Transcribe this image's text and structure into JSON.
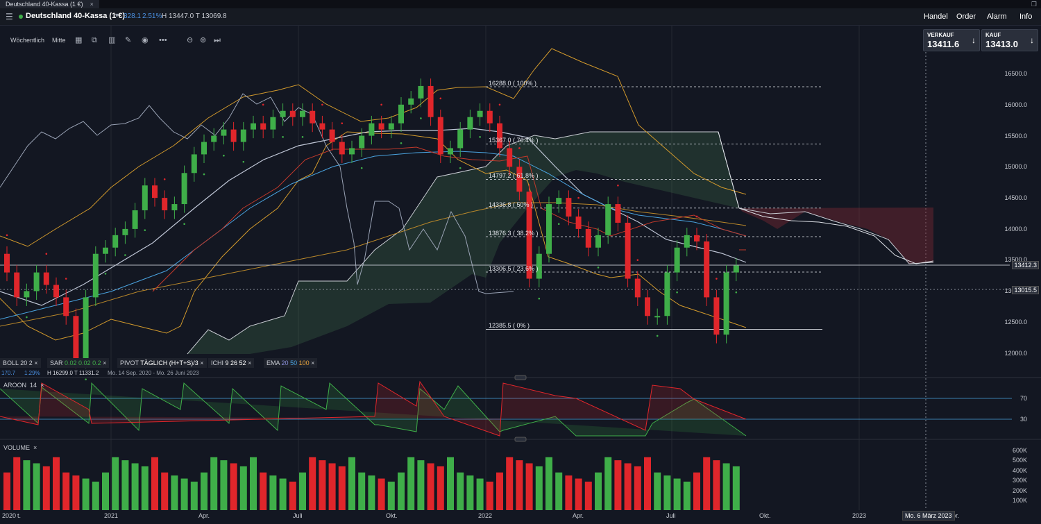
{
  "window": {
    "tab_title": "Deutschland 40-Kassa (1 €)",
    "tab_close": "×"
  },
  "header": {
    "instrument": "Deutschland 40-Kassa (1 €)",
    "change": "328.1",
    "change_pct": "2.51%",
    "high_low": "H 13447.0 T 13069.8",
    "menu": [
      "Handel",
      "Order",
      "Alarm",
      "Info"
    ]
  },
  "toolbar": {
    "interval": "Wöchentlich",
    "price_mode": "Mitte",
    "icons": [
      "chart-type-icon",
      "copy-icon",
      "indicators-icon",
      "draw-icon",
      "eye-icon",
      "more-icon",
      "zoom-out-icon",
      "zoom-in-icon",
      "scroll-right-icon"
    ]
  },
  "quotes": {
    "sell_label": "VERKAUF",
    "sell_value": "13411.6",
    "buy_label": "KAUF",
    "buy_value": "13413.0",
    "arrow": "↓"
  },
  "price_axis": [
    "16500.0",
    "16000.0",
    "15500.0",
    "15000.0",
    "14500.0",
    "14000.0",
    "13500.0",
    "13000.0",
    "12500.0",
    "12000.0"
  ],
  "price_tags": {
    "last": "13412.3",
    "ref": "13015.5"
  },
  "fib_levels": [
    {
      "label": "16288.0 ( 100% )",
      "value": 16288.0
    },
    {
      "label": "15367.0 ( 76.4% )",
      "value": 15367.0
    },
    {
      "label": "14797.2 ( 61.8% )",
      "value": 14797.2
    },
    {
      "label": "14336.8 ( 50% )",
      "value": 14336.8
    },
    {
      "label": "13876.3 ( 38.2% )",
      "value": 13876.3
    },
    {
      "label": "13306.5 ( 23.6% )",
      "value": 13306.5
    },
    {
      "label": "12385.5 ( 0% )",
      "value": 12385.5
    }
  ],
  "legend": {
    "boll": "BOLL",
    "boll_params": "20  2",
    "sar": "SAR",
    "sar_params": "0.02  0.02  0.2",
    "pivot": "PIVOT",
    "pivot_params": "TÄGLICH (H+T+S)/3",
    "ichi": "ICHI",
    "ichi_params": "9  26  52",
    "ema": "EMA",
    "ema_20": "20",
    "ema_50": "50",
    "ema_100": "100",
    "close": "×",
    "sub_left": "170.7",
    "sub_pct": "1.29%",
    "sub_hl": "H 16299.0  T 11331.2",
    "sub_range": "Mo. 14 Sep. 2020 - Mo. 26 Juni 2023"
  },
  "aroon": {
    "title": "AROON",
    "param": "14",
    "close": "×",
    "levels": [
      "70",
      "30"
    ]
  },
  "volume": {
    "title": "VOLUME",
    "close": "×",
    "axis": [
      "600K",
      "500K",
      "400K",
      "300K",
      "200K",
      "100K"
    ]
  },
  "x_axis": [
    "2020",
    "t.",
    "2021",
    "Apr.",
    "Juli",
    "Okt.",
    "2022",
    "Apr.",
    "Juli",
    "Okt.",
    "2023",
    "Apr."
  ],
  "cursor_date": "Mo. 6 März 2023",
  "colors": {
    "up": "#3fae49",
    "down": "#e0262b",
    "bg": "#131722"
  },
  "chart_data": {
    "type": "candlestick",
    "title": "",
    "candles_close": [
      13300,
      12900,
      13000,
      13300,
      13100,
      12900,
      12600,
      11900,
      12900,
      13600,
      13700,
      13900,
      14000,
      14300,
      14700,
      14500,
      14300,
      14400,
      14900,
      15200,
      15400,
      15500,
      15600,
      15400,
      15600,
      15700,
      15600,
      15800,
      15900,
      15800,
      15900,
      15700,
      15600,
      15400,
      15200,
      15300,
      15500,
      15700,
      15600,
      15700,
      16000,
      16100,
      16300,
      15800,
      15200,
      15300,
      15600,
      15800,
      15900,
      15700,
      15300,
      15000,
      14600,
      13200,
      13600,
      14400,
      14500,
      14200,
      14000,
      13700,
      13900,
      14400,
      14100,
      13200,
      12900,
      12600,
      12600,
      13300,
      13700,
      13900,
      13800,
      12900,
      12300,
      13300,
      13412
    ]
  }
}
